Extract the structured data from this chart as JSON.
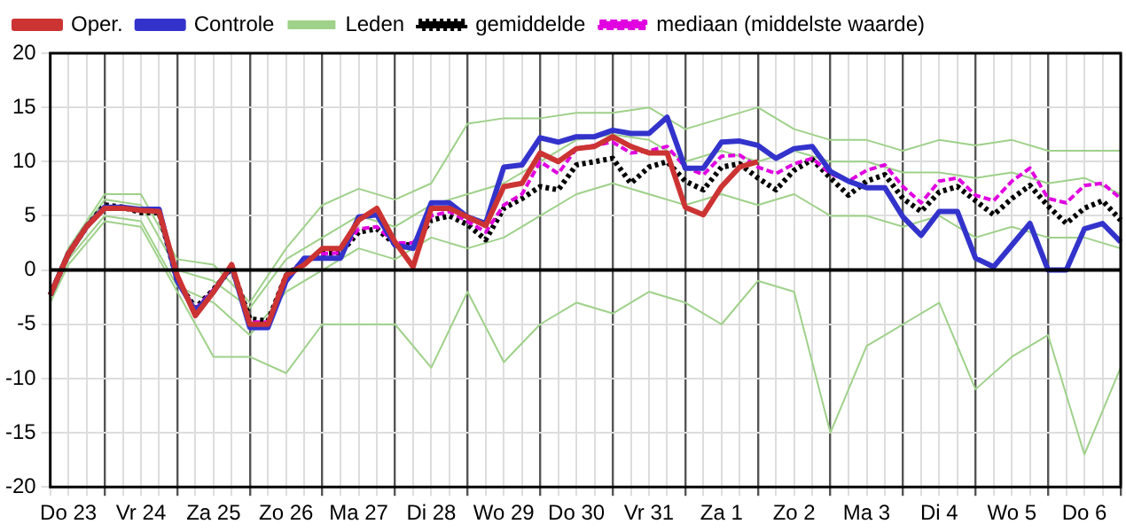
{
  "chart_data": {
    "type": "line",
    "legend": "top",
    "grid": true,
    "marker": "none",
    "categories": [
      null,
      "Do 23",
      null,
      null,
      null,
      "Vr 24",
      null,
      null,
      null,
      "Za 25",
      null,
      null,
      null,
      "Zo 26",
      null,
      null,
      null,
      "Ma 27",
      null,
      null,
      null,
      "Di 28",
      null,
      null,
      null,
      "Wo 29",
      null,
      null,
      null,
      "Do 30",
      null,
      null,
      null,
      "Vr 31",
      null,
      null,
      null,
      "Za 1",
      null,
      null,
      null,
      "Zo 2",
      null,
      null,
      null,
      "Ma 3",
      null,
      null,
      null,
      "Di 4",
      null,
      null,
      null,
      "Wo 5",
      null,
      null,
      null,
      "Do 6",
      null,
      null
    ],
    "ylim": [
      -20,
      20
    ],
    "yticks": [
      -20,
      -15,
      -10,
      -5,
      0,
      5,
      10,
      15,
      20
    ],
    "ref_lines": [
      {
        "axis": "y",
        "value": 0,
        "color": "#000000"
      }
    ],
    "series": [
      {
        "name": "Oper.",
        "color": "#cc3333",
        "line_style": "solid",
        "values": [
          -2.3,
          1.5,
          4,
          5.7,
          5.7,
          5.5,
          5.4,
          -0.5,
          -4.2,
          -2,
          0.5,
          -5,
          -5,
          -0.5,
          0.5,
          2,
          2,
          4.6,
          5.7,
          2.6,
          0.3,
          5.7,
          5.7,
          4.9,
          4.1,
          7.7,
          8,
          10.8,
          10,
          11.2,
          11.4,
          12.3,
          11.4,
          10.8,
          10.8,
          5.8,
          5.1,
          7.7,
          9.5,
          10,
          null,
          null,
          null,
          null,
          null,
          null,
          null,
          null,
          null,
          null,
          null,
          null,
          null,
          null,
          null,
          null,
          null,
          null,
          null,
          null
        ]
      },
      {
        "name": "Controle",
        "color": "#3333cc",
        "line_style": "solid",
        "values": [
          -2.3,
          1.5,
          4,
          5.8,
          5.8,
          5.6,
          5.6,
          -1,
          -3.8,
          -2,
          0.4,
          -5.3,
          -5.3,
          -1,
          1.1,
          1.1,
          1.1,
          4.9,
          5.1,
          2.3,
          2,
          6.2,
          6.2,
          4.9,
          4.3,
          9.5,
          9.7,
          12.2,
          11.8,
          12.3,
          12.3,
          12.9,
          12.6,
          12.6,
          14.1,
          9.4,
          9.4,
          11.8,
          11.9,
          11.5,
          10.3,
          11.2,
          11.4,
          9.1,
          8.2,
          7.6,
          7.6,
          4.9,
          3.2,
          5.4,
          5.4,
          1.1,
          0.3,
          2.3,
          4.3,
          0,
          0,
          3.8,
          4.3,
          2.6
        ]
      },
      {
        "name": "Leden",
        "color": "#9fd18a",
        "line_style": "solid",
        "values": [
          -2,
          2,
          null,
          7,
          null,
          7,
          null,
          1,
          null,
          0.5,
          null,
          -3,
          null,
          2,
          null,
          6,
          null,
          7.5,
          null,
          6.5,
          null,
          8,
          null,
          13.5,
          null,
          14,
          null,
          14,
          null,
          14.5,
          null,
          14.5,
          null,
          15,
          null,
          13,
          null,
          14,
          null,
          15,
          null,
          13,
          null,
          12,
          null,
          12,
          null,
          11,
          null,
          12,
          null,
          11.5,
          null,
          12,
          null,
          11,
          null,
          11,
          null,
          11
        ]
      },
      {
        "color": "#9fd18a",
        "line_style": "solid",
        "values": [
          -3,
          0.5,
          null,
          4.5,
          null,
          4,
          null,
          -2,
          null,
          -8,
          null,
          -8,
          null,
          -9.5,
          null,
          -5,
          null,
          -5,
          null,
          -5,
          null,
          -9,
          null,
          -2,
          null,
          -8.5,
          null,
          -5,
          null,
          -3,
          null,
          -4,
          null,
          -2,
          null,
          -3,
          null,
          -5,
          null,
          -1,
          null,
          -2,
          null,
          -15,
          null,
          -7,
          null,
          -5,
          null,
          -3,
          null,
          -11,
          null,
          -8,
          null,
          -6,
          null,
          -17,
          null,
          -9
        ]
      },
      {
        "color": "#9fd18a",
        "line_style": "solid",
        "values": [
          -2,
          2,
          null,
          6.5,
          null,
          6,
          null,
          0,
          null,
          -1,
          null,
          -3.5,
          null,
          1,
          null,
          3,
          null,
          5,
          null,
          4,
          null,
          6,
          null,
          7,
          null,
          8,
          null,
          10,
          null,
          12,
          null,
          12.5,
          null,
          12,
          null,
          10,
          null,
          11,
          null,
          10,
          null,
          11,
          null,
          10,
          null,
          10,
          null,
          9,
          null,
          9,
          null,
          8.5,
          null,
          9,
          null,
          8,
          null,
          8.5,
          null,
          7
        ]
      },
      {
        "color": "#9fd18a",
        "line_style": "solid",
        "values": [
          -2.5,
          1,
          null,
          5,
          null,
          4.5,
          null,
          -1.5,
          null,
          -3,
          null,
          -6,
          null,
          -2,
          null,
          0,
          null,
          2,
          null,
          1,
          null,
          3,
          null,
          2,
          null,
          3,
          null,
          5,
          null,
          7,
          null,
          8,
          null,
          7,
          null,
          6,
          null,
          7,
          null,
          6,
          null,
          7,
          null,
          5,
          null,
          5,
          null,
          4,
          null,
          5,
          null,
          3,
          null,
          4,
          null,
          3,
          null,
          3,
          null,
          2
        ]
      },
      {
        "name": "gemiddelde",
        "color": "#000000",
        "line_style": "dotted",
        "values": [
          -2.3,
          1.5,
          4,
          6,
          5.8,
          5.3,
          5.3,
          -1,
          -3.5,
          -1.8,
          0.2,
          -4.5,
          -4.7,
          -0.5,
          0.8,
          1.5,
          1.6,
          3.5,
          3.8,
          2.4,
          2.3,
          4.6,
          5,
          4.2,
          2.8,
          5.7,
          6.6,
          7.7,
          7.4,
          9.7,
          10,
          10.3,
          8,
          9.5,
          10,
          8.2,
          7.4,
          9.5,
          9.8,
          8.5,
          7.4,
          9.2,
          10.2,
          8.5,
          6.9,
          8.2,
          8.8,
          6.6,
          5.4,
          7.2,
          7.7,
          6.4,
          5.1,
          6.6,
          7.8,
          5.9,
          4.3,
          5.7,
          6.4,
          4.6
        ]
      },
      {
        "name": "mediaan (middelste waarde)",
        "color": "#e000e0",
        "line_style": "dashed",
        "values": [
          null,
          null,
          null,
          null,
          null,
          null,
          null,
          null,
          -3.6,
          -1.8,
          0.3,
          -4.8,
          -4.8,
          -0.5,
          0.8,
          1.5,
          1.6,
          3.8,
          4,
          2.5,
          2.5,
          5,
          5.4,
          4.5,
          3.5,
          6,
          7,
          10,
          8.9,
          11.2,
          11.5,
          11.8,
          10.8,
          11,
          11.4,
          9.5,
          8.8,
          10.5,
          10.6,
          9.5,
          8.9,
          9.8,
          10.3,
          8.9,
          8.2,
          9.2,
          9.7,
          7.7,
          6.2,
          8.2,
          8.5,
          6.9,
          6.4,
          8.2,
          9.4,
          6.6,
          6.2,
          7.8,
          8,
          6.6
        ]
      }
    ]
  }
}
